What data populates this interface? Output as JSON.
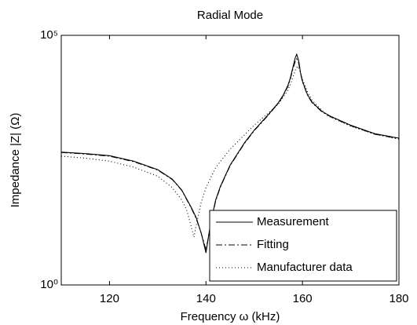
{
  "chart_data": {
    "type": "line",
    "title": "Radial Mode",
    "xlabel": "Frequency ω (kHz)",
    "ylabel": "Impedance |Z| (Ω)",
    "xlim": [
      110,
      180
    ],
    "xticks": [
      120,
      140,
      160,
      180
    ],
    "ylim": [
      1,
      100000
    ],
    "ylog": true,
    "yticks": [
      {
        "value": 1,
        "label": "10⁰"
      },
      {
        "value": 100000,
        "label": "10⁵"
      }
    ],
    "legend": "lower right",
    "series": [
      {
        "name": "Measurement",
        "color": "#000000",
        "dash": "solid",
        "x": [
          110,
          115,
          120,
          125,
          130,
          133,
          135,
          137,
          138,
          139,
          139.5,
          140,
          140.5,
          141,
          142,
          143,
          145,
          148,
          150,
          153,
          155,
          156,
          157,
          157.5,
          158,
          158.5,
          158.8,
          159.2,
          159.6,
          160,
          161,
          162,
          164,
          166,
          170,
          175,
          180
        ],
        "values": [
          457,
          427,
          389,
          302,
          204,
          132,
          79,
          35,
          22,
          11,
          7,
          4.4,
          9,
          18,
          50,
          95,
          251,
          708,
          1259,
          2630,
          4467,
          6310,
          10000,
          14125,
          22387,
          35481,
          41687,
          31623,
          17783,
          12023,
          6607,
          4571,
          3020,
          2344,
          1585,
          1072,
          871
        ]
      },
      {
        "name": "Fitting",
        "color": "#000000",
        "dash": "dashdot",
        "x": [
          110,
          115,
          120,
          125,
          130,
          133,
          135,
          137,
          138,
          139,
          139.5,
          140,
          140.5,
          141,
          142,
          143,
          145,
          148,
          150,
          153,
          155,
          156,
          157,
          157.5,
          158,
          158.5,
          158.8,
          159.2,
          159.6,
          160,
          161,
          162,
          164,
          166,
          170,
          175,
          180
        ],
        "values": [
          450,
          420,
          380,
          295,
          200,
          130,
          78,
          34,
          21,
          11,
          7.5,
          5,
          9,
          17,
          48,
          92,
          245,
          690,
          1230,
          2570,
          4365,
          6166,
          9550,
          13490,
          20893,
          30200,
          33884,
          28184,
          17378,
          11749,
          6457,
          4467,
          2951,
          2291,
          1549,
          1047,
          851
        ]
      },
      {
        "name": "Manufacturer data",
        "color": "#000000",
        "dash": "dotted",
        "x": [
          110,
          115,
          120,
          125,
          130,
          133,
          135,
          136,
          137,
          137.5,
          138,
          139,
          140,
          142,
          145,
          150,
          155,
          157,
          158,
          158.5,
          159,
          159.5,
          160,
          161,
          162,
          165,
          170,
          175,
          180
        ],
        "values": [
          380,
          347,
          302,
          229,
          151,
          89,
          50,
          32,
          14,
          9,
          16,
          45,
          89,
          224,
          525,
          1585,
          4169,
          7943,
          14125,
          19953,
          23988,
          19055,
          13183,
          7586,
          5012,
          2512,
          1514,
          1047,
          832
        ]
      }
    ]
  }
}
